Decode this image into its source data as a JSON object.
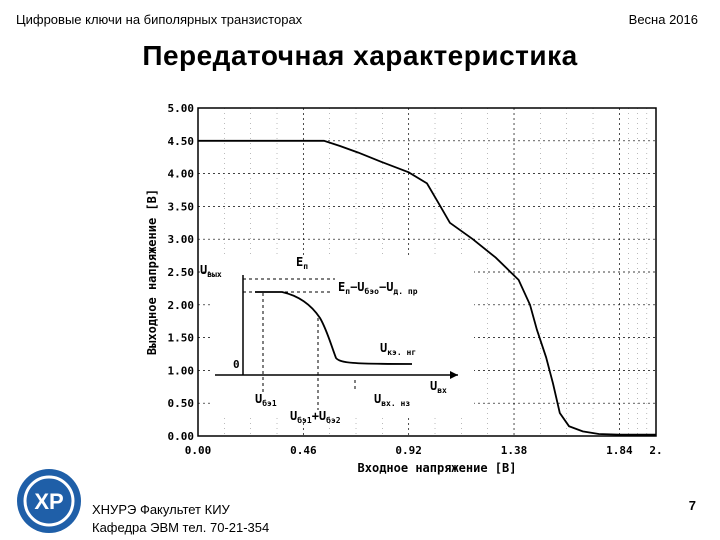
{
  "header": {
    "left": "Цифровые ключи на биполярных  транзисторах",
    "right": "Весна 2016"
  },
  "title": "Передаточная характеристика",
  "chart_data": {
    "type": "line",
    "xlabel": "Входное напряжение [В]",
    "ylabel": "Выходное напряжение [В]",
    "xlim": [
      0,
      2.0
    ],
    "ylim": [
      0,
      5.0
    ],
    "x_ticks": [
      "0.00",
      "0.46",
      "0.92",
      "1.38",
      "1.84",
      "2."
    ],
    "y_ticks": [
      "0.00",
      "0.50",
      "1.00",
      "1.50",
      "2.00",
      "2.50",
      "3.00",
      "3.50",
      "4.00",
      "4.50",
      "5.00"
    ],
    "grid": true,
    "series": [
      {
        "x": [
          0,
          0.4,
          0.55,
          0.62,
          0.7,
          0.8,
          0.92,
          1.0,
          1.05,
          1.1,
          1.2,
          1.3,
          1.4,
          1.45,
          1.48,
          1.52,
          1.55,
          1.58,
          1.62,
          1.68,
          1.75,
          1.84,
          1.95,
          2.0
        ],
        "y": [
          4.5,
          4.5,
          4.5,
          4.42,
          4.32,
          4.18,
          4.02,
          3.85,
          3.55,
          3.25,
          3.0,
          2.72,
          2.38,
          2.0,
          1.62,
          1.2,
          0.8,
          0.35,
          0.15,
          0.07,
          0.03,
          0.02,
          0.02,
          0.02
        ]
      }
    ],
    "inset": {
      "y_axis_label": "U",
      "y_axis_sub": "вых",
      "x_axis_label": "U",
      "x_axis_sub": "вх",
      "origin_label": "0",
      "labels": [
        {
          "main": "E",
          "sub": "п"
        },
        {
          "main": "E",
          "sub": "п",
          "rest": "−U",
          "rest_sub": "бэо",
          "rest2": "−U",
          "rest2_sub": "д. пр"
        },
        {
          "main": "U",
          "sub": "кэ. нг"
        },
        {
          "main": "U",
          "sub": "бэ1"
        },
        {
          "main": "U",
          "sub": "бэ1",
          "rest": "+U",
          "rest_sub": "бэ2"
        },
        {
          "main": "U",
          "sub": "вх. нз"
        }
      ]
    }
  },
  "footer": {
    "line1": "ХНУРЭ Факультет КИУ",
    "line2": "Кафедра ЭВМ   тел. 70-21-354",
    "page": "7"
  },
  "logo": {
    "text": "ХР",
    "color": "#1f5fa8"
  }
}
